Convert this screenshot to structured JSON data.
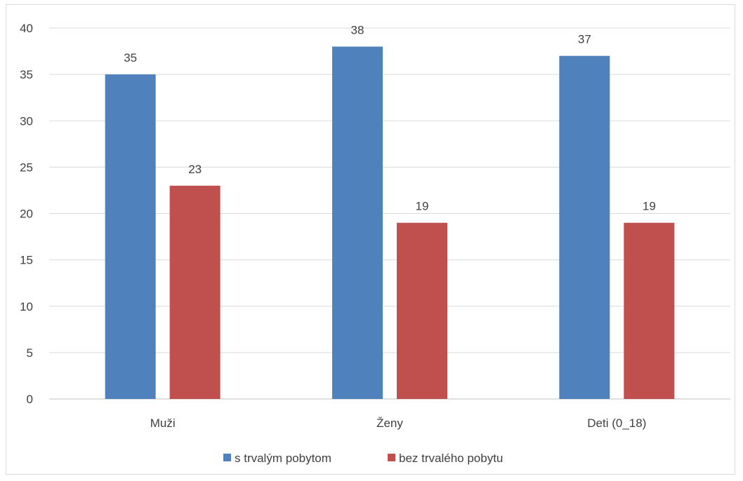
{
  "chart_data": {
    "type": "bar",
    "title": "",
    "xlabel": "",
    "ylabel": "",
    "categories": [
      "Muži",
      "Ženy",
      "Deti (0_18)"
    ],
    "series": [
      {
        "name": "s trvalým pobytom",
        "values": [
          35,
          38,
          37
        ],
        "color": "#4f81bd"
      },
      {
        "name": "bez trvalého pobytu",
        "values": [
          23,
          19,
          19
        ],
        "color": "#c0504d"
      }
    ],
    "ylim": [
      0,
      40
    ],
    "yticks": [
      0,
      5,
      10,
      15,
      20,
      25,
      30,
      35,
      40
    ],
    "grid": true,
    "legend": "bottom",
    "data_labels": true
  }
}
